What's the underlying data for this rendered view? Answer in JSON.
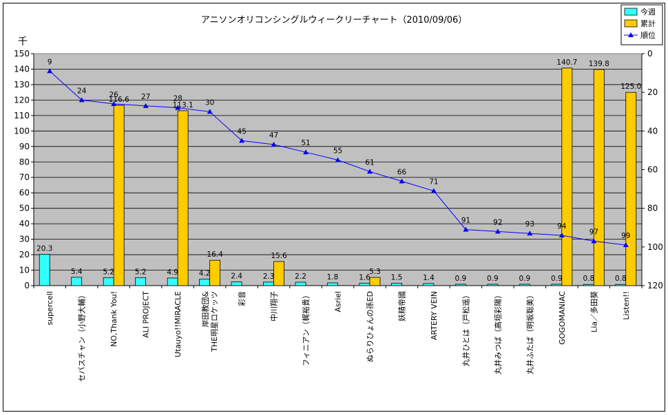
{
  "chart_data": {
    "type": "bar",
    "title": "アニソンオリコンシングルウィークリーチャート（2010/09/06）",
    "ylabel": "千",
    "ylim": [
      0,
      150
    ],
    "ytick_step": 10,
    "y2lim": [
      0,
      120
    ],
    "y2tick_step": 20,
    "y2_inverted": true,
    "grid": true,
    "legend_position": "top-right",
    "categories": [
      "supercell",
      "セバスチャン（小野大輔）",
      "NO,Thank You!",
      "ALI PROJECT",
      "Utauyo!!MIRACLE",
      "岸田教団&THE明星ロケッツ",
      "彩音",
      "中川翔子",
      "フィニアン（梶裕貴）",
      "Asriel",
      "ぬらりひょんの孫ED",
      "妖精帝國",
      "ARTERY VEIN",
      "丸井ひとは（戸松遥）",
      "丸井みつば（高垣彩陽）",
      "丸井ふたば（明坂聡美）",
      "GOGOMANIAC",
      "Lia／多田葵",
      "Listen!!"
    ],
    "category_lines": [
      [
        "supercell"
      ],
      [
        "セバスチャン（小野大輔）"
      ],
      [
        "NO,Thank You!"
      ],
      [
        "ALI PROJECT"
      ],
      [
        "Utauyo!!MIRACLE"
      ],
      [
        "岸田教団&",
        "THE明星ロケッツ"
      ],
      [
        "彩音"
      ],
      [
        "中川翔子"
      ],
      [
        "フィニアン（梶裕貴）"
      ],
      [
        "Asriel"
      ],
      [
        "ぬらりひょんの孫ED"
      ],
      [
        "妖精帝國"
      ],
      [
        "ARTERY VEIN"
      ],
      [
        "丸井ひとは（戸松遥）"
      ],
      [
        "丸井みつば（高垣彩陽）"
      ],
      [
        "丸井ふたば（明坂聡美）"
      ],
      [
        "GOGOMANIAC"
      ],
      [
        "Lia／多田葵"
      ],
      [
        "Listen!!"
      ]
    ],
    "series": [
      {
        "name": "今週",
        "type": "bar",
        "color": "#33ffff",
        "values": [
          20.3,
          5.4,
          5.2,
          5.2,
          4.9,
          4.2,
          2.4,
          2.3,
          2.2,
          1.8,
          1.6,
          1.5,
          1.4,
          0.9,
          0.9,
          0.9,
          0.9,
          0.8,
          0.8
        ],
        "labels": [
          "20.3",
          "5.4",
          "5.2",
          "5.2",
          "4.9",
          "4.2",
          "2.4",
          "2.3",
          "2.2",
          "1.8",
          "1.6",
          "1.5",
          "1.4",
          "0.9",
          "0.9",
          "0.9",
          "0.9",
          "0.8",
          "0.8"
        ]
      },
      {
        "name": "累計",
        "type": "bar",
        "color": "#ffcc00",
        "values": [
          null,
          null,
          116.6,
          null,
          113.1,
          16.4,
          null,
          15.6,
          null,
          null,
          5.3,
          null,
          null,
          null,
          null,
          null,
          140.7,
          139.8,
          125.0
        ],
        "labels": [
          "",
          "",
          "116.6",
          "",
          "113.1",
          "16.4",
          "",
          "15.6",
          "",
          "",
          "5.3",
          "",
          "",
          "",
          "",
          "",
          "140.7",
          "139.8",
          "125.0"
        ]
      },
      {
        "name": "順位",
        "type": "line",
        "axis": "secondary",
        "color": "#0000ff",
        "values": [
          9,
          24,
          26,
          27,
          28,
          30,
          45,
          47,
          51,
          55,
          61,
          66,
          71,
          91,
          92,
          93,
          94,
          97,
          99
        ],
        "labels": [
          "9",
          "24",
          "26",
          "27",
          "28",
          "30",
          "45",
          "47",
          "51",
          "55",
          "61",
          "66",
          "71",
          "91",
          "92",
          "93",
          "94",
          "97",
          "99"
        ]
      }
    ]
  }
}
